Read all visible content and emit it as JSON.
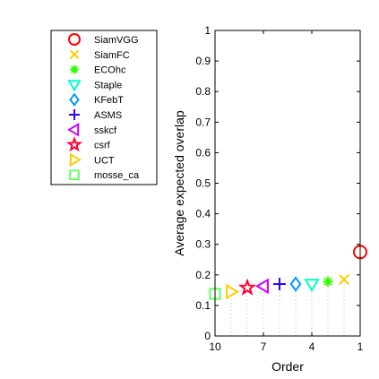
{
  "chart_data": {
    "type": "scatter",
    "title": "",
    "xlabel": "Order",
    "ylabel": "Average expected overlap",
    "xlim": [
      10,
      1
    ],
    "ylim": [
      0,
      1
    ],
    "x_reversed": true,
    "xticks": [
      "10",
      "7",
      "4",
      "1"
    ],
    "yticks": [
      "0",
      "0.1",
      "0.2",
      "0.3",
      "0.4",
      "0.5",
      "0.6",
      "0.7",
      "0.8",
      "0.9",
      "1"
    ],
    "grid": false,
    "legend_position": "top-left-outside",
    "series": [
      {
        "name": "SiamVGG",
        "order": 1,
        "value": 0.275,
        "marker": "circle",
        "color": "#ff0000"
      },
      {
        "name": "SiamFC",
        "order": 2,
        "value": 0.185,
        "marker": "x",
        "color": "#ffcc00"
      },
      {
        "name": "ECOhc",
        "order": 3,
        "value": 0.178,
        "marker": "asterisk",
        "color": "#33ff00"
      },
      {
        "name": "Staple",
        "order": 4,
        "value": 0.17,
        "marker": "triangle-down",
        "color": "#00ffcc"
      },
      {
        "name": "KFebT",
        "order": 5,
        "value": 0.17,
        "marker": "diamond",
        "color": "#0099ff"
      },
      {
        "name": "ASMS",
        "order": 6,
        "value": 0.17,
        "marker": "plus",
        "color": "#3300ff"
      },
      {
        "name": "sskcf",
        "order": 7,
        "value": 0.163,
        "marker": "triangle-left",
        "color": "#cc00ff"
      },
      {
        "name": "csrf",
        "order": 8,
        "value": 0.158,
        "marker": "pentagram",
        "color": "#ff0033"
      },
      {
        "name": "UCT",
        "order": 9,
        "value": 0.145,
        "marker": "triangle-right",
        "color": "#ffcc00"
      },
      {
        "name": "mosse_ca",
        "order": 10,
        "value": 0.138,
        "marker": "square",
        "color": "#66ff66"
      }
    ]
  }
}
